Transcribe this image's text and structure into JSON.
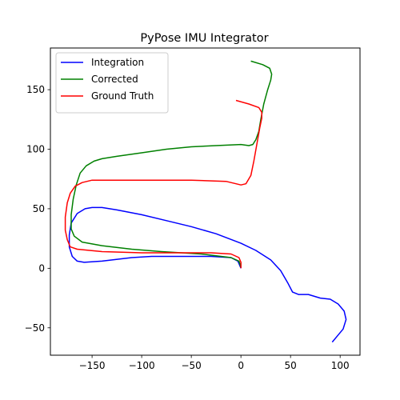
{
  "chart_data": {
    "type": "line",
    "title": "PyPose IMU Integrator",
    "xlabel": "",
    "ylabel": "",
    "xlim": [
      -192,
      120
    ],
    "ylim": [
      -73,
      185
    ],
    "xticks": [
      -150,
      -100,
      -50,
      0,
      50,
      100
    ],
    "yticks": [
      -50,
      0,
      50,
      100,
      150
    ],
    "xtick_labels": [
      "−150",
      "−100",
      "−50",
      "0",
      "50",
      "100"
    ],
    "ytick_labels": [
      "−50",
      "0",
      "50",
      "100",
      "150"
    ],
    "grid": false,
    "legend_position": "top-left",
    "series": [
      {
        "name": "Integration",
        "color": "#0000ff",
        "points": [
          [
            0,
            0
          ],
          [
            -3,
            6
          ],
          [
            -10,
            9
          ],
          [
            -30,
            10
          ],
          [
            -60,
            10
          ],
          [
            -90,
            10
          ],
          [
            -110,
            9
          ],
          [
            -140,
            6
          ],
          [
            -158,
            5
          ],
          [
            -165,
            6
          ],
          [
            -170,
            10
          ],
          [
            -173,
            18
          ],
          [
            -173,
            28
          ],
          [
            -171,
            38
          ],
          [
            -165,
            46
          ],
          [
            -157,
            50
          ],
          [
            -150,
            51
          ],
          [
            -140,
            51
          ],
          [
            -125,
            49
          ],
          [
            -100,
            45
          ],
          [
            -75,
            40
          ],
          [
            -50,
            35
          ],
          [
            -25,
            29
          ],
          [
            0,
            21
          ],
          [
            15,
            15
          ],
          [
            30,
            7
          ],
          [
            40,
            -2
          ],
          [
            47,
            -12
          ],
          [
            52,
            -20
          ],
          [
            58,
            -22
          ],
          [
            68,
            -22
          ],
          [
            80,
            -25
          ],
          [
            90,
            -26
          ],
          [
            98,
            -30
          ],
          [
            104,
            -36
          ],
          [
            106,
            -43
          ],
          [
            103,
            -51
          ],
          [
            97,
            -57
          ],
          [
            92,
            -62
          ]
        ]
      },
      {
        "name": "Corrected",
        "color": "#008000",
        "points": [
          [
            0,
            1
          ],
          [
            -2,
            6
          ],
          [
            -10,
            9
          ],
          [
            -40,
            12
          ],
          [
            -80,
            14
          ],
          [
            -110,
            16
          ],
          [
            -140,
            19
          ],
          [
            -160,
            22
          ],
          [
            -168,
            27
          ],
          [
            -171,
            33
          ],
          [
            -171,
            45
          ],
          [
            -169,
            58
          ],
          [
            -166,
            70
          ],
          [
            -162,
            80
          ],
          [
            -156,
            86
          ],
          [
            -148,
            90
          ],
          [
            -140,
            92
          ],
          [
            -125,
            94
          ],
          [
            -100,
            97
          ],
          [
            -75,
            100
          ],
          [
            -50,
            102
          ],
          [
            -25,
            103
          ],
          [
            0,
            104
          ],
          [
            8,
            103
          ],
          [
            12,
            104
          ],
          [
            15,
            108
          ],
          [
            18,
            115
          ],
          [
            20,
            125
          ],
          [
            23,
            138
          ],
          [
            27,
            150
          ],
          [
            30,
            158
          ],
          [
            31,
            163
          ],
          [
            29,
            168
          ],
          [
            22,
            171
          ],
          [
            10,
            174
          ]
        ]
      },
      {
        "name": "Ground Truth",
        "color": "#ff0000",
        "points": [
          [
            0,
            0
          ],
          [
            0,
            5
          ],
          [
            -2,
            9
          ],
          [
            -10,
            12
          ],
          [
            -30,
            13
          ],
          [
            -60,
            13
          ],
          [
            -100,
            13
          ],
          [
            -140,
            14
          ],
          [
            -165,
            16
          ],
          [
            -172,
            18
          ],
          [
            -175,
            24
          ],
          [
            -177,
            32
          ],
          [
            -177,
            43
          ],
          [
            -175,
            55
          ],
          [
            -172,
            63
          ],
          [
            -167,
            69
          ],
          [
            -160,
            72
          ],
          [
            -150,
            74
          ],
          [
            -130,
            74
          ],
          [
            -100,
            74
          ],
          [
            -50,
            74
          ],
          [
            -15,
            73
          ],
          [
            -5,
            71
          ],
          [
            0,
            70
          ],
          [
            5,
            71
          ],
          [
            10,
            78
          ],
          [
            13,
            90
          ],
          [
            16,
            104
          ],
          [
            19,
            118
          ],
          [
            21,
            126
          ],
          [
            21,
            131
          ],
          [
            18,
            135
          ],
          [
            8,
            138
          ],
          [
            -5,
            141
          ]
        ]
      }
    ]
  }
}
